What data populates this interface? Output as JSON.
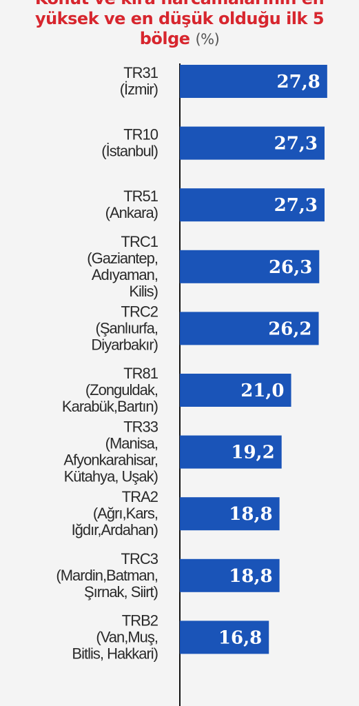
{
  "chart_data": {
    "type": "bar",
    "orientation": "horizontal",
    "title_lines": [
      "Konut ve kira harcamalarının en",
      "yüksek ve en düşük olduğu ilk 5",
      "bölge"
    ],
    "title_unit": "(%)",
    "categories": [
      [
        "TR31",
        "(İzmir)"
      ],
      [
        "TR10",
        "(İstanbul)"
      ],
      [
        "TR51",
        "(Ankara)"
      ],
      [
        "TRC1",
        "(Gaziantep,",
        "Adıyaman,",
        "Kilis)"
      ],
      [
        "TRC2",
        "(Şanlıurfa,",
        "Diyarbakır)"
      ],
      [
        "TR81",
        "(Zonguldak,",
        "Karabük,Bartın)"
      ],
      [
        "TR33",
        "(Manisa,",
        "Afyonkarahisar,",
        "Kütahya, Uşak)"
      ],
      [
        "TRA2",
        "(Ağrı,Kars,",
        "Iğdır,Ardahan)"
      ],
      [
        "TRC3",
        "(Mardin,Batman,",
        "Şırnak, Siirt)"
      ],
      [
        "TRB2",
        "(Van,Muş,",
        "Bitlis, Hakkari)"
      ]
    ],
    "values": [
      27.8,
      27.3,
      27.3,
      26.3,
      26.2,
      21.0,
      19.2,
      18.8,
      18.8,
      16.8
    ],
    "value_labels": [
      "27,8",
      "27,3",
      "27,3",
      "26,3",
      "26,2",
      "21,0",
      "19,2",
      "18,8",
      "18,8",
      "16,8"
    ],
    "xlim": [
      0,
      28.6
    ],
    "bar_color": "#1a54b8",
    "axis_color": "#111111"
  }
}
